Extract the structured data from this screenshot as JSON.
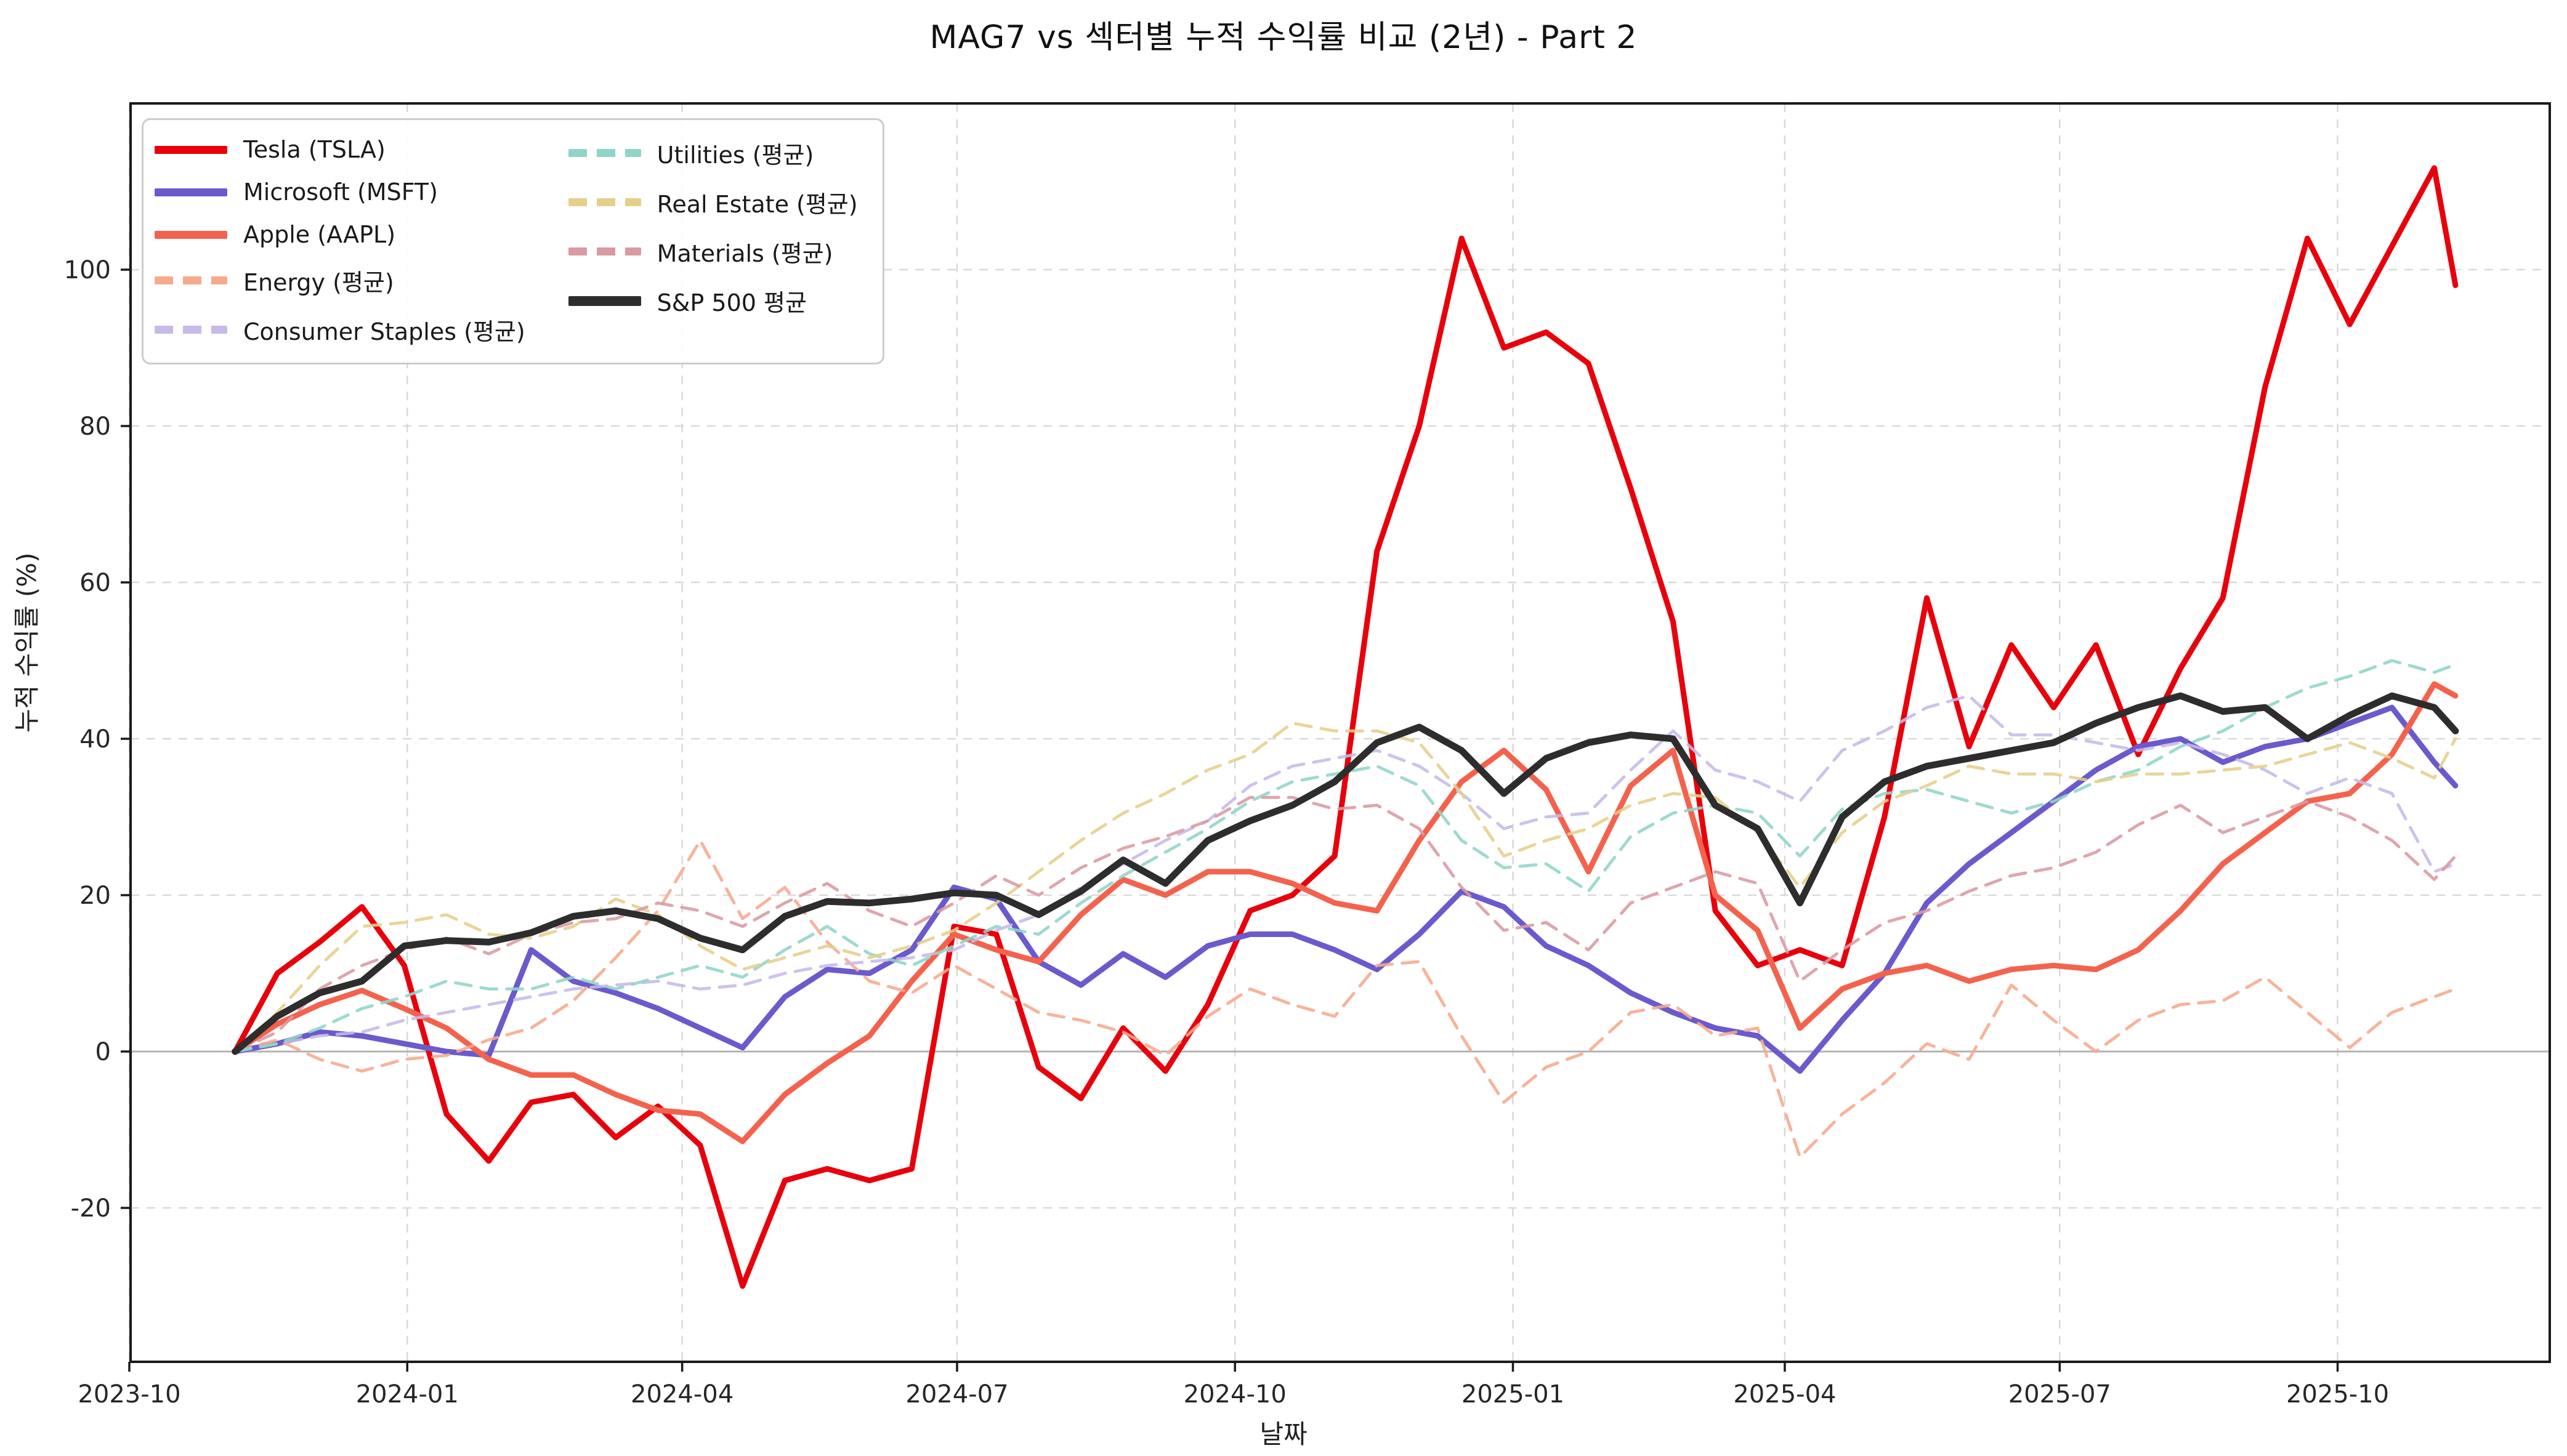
{
  "chart_data": {
    "type": "line",
    "title": "MAG7 vs 섹터별 누적 수익률 비교 (2년) - Part 2",
    "xlabel": "날짜",
    "ylabel": "누적 수익률 (%)",
    "x_ticks": [
      "2023-10",
      "2024-01",
      "2024-04",
      "2024-07",
      "2024-10",
      "2025-01",
      "2025-04",
      "2025-07",
      "2025-10"
    ],
    "y_ticks": [
      -20,
      0,
      20,
      40,
      60,
      80,
      100
    ],
    "ylim": [
      -35,
      118
    ],
    "grid": true,
    "legend_position": "upper-left",
    "dates": [
      "2023-11-05",
      "2023-11-19",
      "2023-12-03",
      "2023-12-17",
      "2023-12-31",
      "2024-01-14",
      "2024-01-28",
      "2024-02-11",
      "2024-02-25",
      "2024-03-10",
      "2024-03-24",
      "2024-04-07",
      "2024-04-21",
      "2024-05-05",
      "2024-05-19",
      "2024-06-02",
      "2024-06-16",
      "2024-06-30",
      "2024-07-14",
      "2024-07-28",
      "2024-08-11",
      "2024-08-25",
      "2024-09-08",
      "2024-09-22",
      "2024-10-06",
      "2024-10-20",
      "2024-11-03",
      "2024-11-17",
      "2024-12-01",
      "2024-12-15",
      "2024-12-29",
      "2025-01-12",
      "2025-01-26",
      "2025-02-09",
      "2025-02-23",
      "2025-03-09",
      "2025-03-23",
      "2025-04-06",
      "2025-04-20",
      "2025-05-04",
      "2025-05-18",
      "2025-06-01",
      "2025-06-15",
      "2025-06-29",
      "2025-07-13",
      "2025-07-27",
      "2025-08-10",
      "2025-08-24",
      "2025-09-07",
      "2025-09-21",
      "2025-10-05",
      "2025-10-19",
      "2025-11-02",
      "2025-11-09"
    ],
    "series": [
      {
        "name": "Tesla (TSLA)",
        "color": "#e8000b",
        "style": "solid",
        "width": 9,
        "values": [
          0,
          10,
          14,
          18.5,
          11,
          -8,
          -14,
          -6.5,
          -5.5,
          -11,
          -7,
          -12,
          -30,
          -16.5,
          -15,
          -16.5,
          -15,
          16,
          15,
          -2,
          -6,
          3,
          -2.5,
          6,
          18,
          20,
          25,
          64,
          80,
          104,
          90,
          92,
          88,
          72,
          55,
          18,
          11,
          13,
          11,
          30,
          58,
          39,
          52,
          44,
          52,
          38,
          49,
          58,
          85,
          104,
          93,
          103,
          113,
          98
        ]
      },
      {
        "name": "Microsoft (MSFT)",
        "color": "#6a5acd",
        "style": "solid",
        "width": 9,
        "values": [
          0,
          1,
          2.5,
          2,
          1,
          0,
          -0.5,
          13,
          9,
          7.5,
          5.5,
          3,
          0.5,
          7,
          10.5,
          10,
          13,
          21,
          19.5,
          11.5,
          8.5,
          12.5,
          9.5,
          13.5,
          15,
          15,
          13,
          10.5,
          15,
          20.5,
          18.5,
          13.5,
          11,
          7.5,
          5,
          3,
          2,
          -2.5,
          4,
          10,
          19,
          24,
          28,
          32,
          36,
          39,
          40,
          37,
          39,
          40,
          42,
          44,
          37,
          34
        ]
      },
      {
        "name": "Apple (AAPL)",
        "color": "#f4624d",
        "style": "solid",
        "width": 9,
        "values": [
          0,
          3.5,
          6,
          7.8,
          5.5,
          3,
          -1,
          -3,
          -3,
          -5.5,
          -7.5,
          -8,
          -11.5,
          -5.5,
          -1.5,
          2,
          9,
          15,
          13,
          11.5,
          17.5,
          22,
          20,
          23,
          23,
          21.5,
          19,
          18,
          27,
          34.5,
          38.5,
          33.5,
          23,
          34,
          38.5,
          20,
          15.5,
          3,
          8,
          10,
          11,
          9,
          10.5,
          11,
          10.5,
          13,
          18,
          24,
          28,
          32,
          33,
          38,
          47,
          45.5
        ]
      },
      {
        "name": "Energy (평균)",
        "color": "#f7a98c",
        "style": "dashed",
        "width": 5,
        "values": [
          0,
          1.5,
          -1,
          -2.5,
          -1,
          -0.5,
          1.5,
          3,
          6.5,
          12,
          18,
          27,
          17,
          21,
          14,
          9,
          7.5,
          11,
          8,
          5,
          4,
          2.5,
          -0.5,
          4.5,
          8,
          6,
          4.5,
          11,
          11.5,
          2,
          -6.5,
          -2,
          0,
          5,
          6,
          2,
          3,
          -13.5,
          -8,
          -4,
          1,
          -1,
          8.5,
          4,
          0,
          4,
          6,
          6.5,
          9.5,
          5,
          0.5,
          5,
          7,
          8
        ]
      },
      {
        "name": "Consumer Staples (평균)",
        "color": "#c7b9e8",
        "style": "dashed",
        "width": 5,
        "values": [
          0,
          1,
          2,
          2.5,
          4,
          5,
          6,
          7,
          8,
          8.5,
          9,
          8,
          8.5,
          10,
          11,
          11.5,
          12,
          13,
          15.5,
          17.5,
          21,
          24,
          27,
          29.5,
          34,
          36.5,
          37.5,
          38.5,
          36.5,
          33,
          28.5,
          30,
          30.5,
          36,
          41,
          36,
          34.5,
          32,
          38.5,
          41,
          44,
          45.5,
          40.5,
          40.5,
          39.5,
          38.5,
          39.5,
          38,
          36,
          33,
          35,
          33,
          23,
          24
        ]
      },
      {
        "name": "Utilities (평균)",
        "color": "#8fd5c8",
        "style": "dashed",
        "width": 5,
        "values": [
          0,
          1,
          3,
          5.5,
          7,
          9,
          8,
          8,
          9.5,
          8,
          9.5,
          11,
          9.5,
          13,
          16,
          12.5,
          11,
          13.5,
          16,
          15,
          19,
          22.5,
          25.5,
          28.5,
          32,
          34.5,
          35.5,
          36.5,
          34,
          27,
          23.5,
          24,
          20.5,
          27.5,
          30.5,
          31.5,
          30.5,
          25,
          31,
          33,
          33.5,
          32,
          30.5,
          32,
          34.5,
          36,
          39,
          41,
          44,
          46.5,
          48,
          50,
          48.5,
          49.5
        ]
      },
      {
        "name": "Real Estate (평균)",
        "color": "#e5cf8b",
        "style": "dashed",
        "width": 5,
        "values": [
          0,
          5,
          11,
          16,
          16.5,
          17.5,
          15,
          14.5,
          16,
          19.5,
          17.5,
          13.5,
          10.5,
          12,
          13.5,
          12,
          13.5,
          15.5,
          19,
          23,
          27,
          30.5,
          33,
          36,
          38,
          42,
          41,
          41,
          39.5,
          33,
          25,
          27,
          28.5,
          31.5,
          33,
          32.5,
          28,
          21,
          28,
          32,
          34,
          36.5,
          35.5,
          35.5,
          34.5,
          35.5,
          35.5,
          36,
          36.5,
          38,
          39.5,
          37.5,
          35,
          40
        ]
      },
      {
        "name": "Materials (평균)",
        "color": "#d99aa2",
        "style": "dashed",
        "width": 5,
        "values": [
          0,
          2.5,
          8,
          11,
          13,
          14.5,
          12.5,
          15,
          16.5,
          17,
          19,
          18,
          16,
          19,
          21.5,
          18,
          16,
          19,
          22.5,
          20,
          23.5,
          26,
          27.5,
          29.5,
          32.5,
          32.5,
          31,
          31.5,
          28.5,
          21,
          15.5,
          16.5,
          13,
          19,
          21,
          23,
          21.5,
          9,
          13,
          16.5,
          18,
          20.5,
          22.5,
          23.5,
          25.5,
          29,
          31.5,
          28,
          30,
          32,
          30,
          27,
          22,
          25
        ]
      },
      {
        "name": "S&P 500 평균",
        "color": "#2d2d2d",
        "style": "solid",
        "width": 11,
        "values": [
          0,
          4.5,
          7.5,
          9,
          13.5,
          14.2,
          14,
          15.2,
          17.3,
          18,
          17,
          14.5,
          13,
          17.3,
          19.2,
          19,
          19.5,
          20.3,
          20,
          17.5,
          20.5,
          24.5,
          21.5,
          27,
          29.5,
          31.5,
          34.5,
          39.5,
          41.5,
          38.5,
          33,
          37.5,
          39.5,
          40.5,
          40,
          31.5,
          28.5,
          19,
          30,
          34.5,
          36.5,
          37.5,
          38.5,
          39.5,
          42,
          44,
          45.5,
          43.5,
          44,
          40,
          43,
          45.5,
          44,
          41
        ]
      }
    ]
  }
}
